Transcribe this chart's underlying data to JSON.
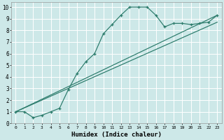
{
  "xlabel": "Humidex (Indice chaleur)",
  "bg_color": "#cde8e8",
  "grid_color": "#ffffff",
  "line_color": "#2a7a6a",
  "line1_x": [
    0,
    1,
    2,
    3,
    4,
    5,
    6,
    7,
    8,
    9,
    10,
    11,
    12,
    13,
    14,
    15,
    16,
    17,
    18,
    19,
    20,
    21,
    22,
    23
  ],
  "line1_y": [
    1.0,
    1.0,
    0.5,
    0.7,
    1.0,
    1.3,
    2.9,
    4.3,
    5.3,
    6.0,
    7.7,
    8.5,
    9.3,
    10.0,
    10.0,
    10.0,
    9.3,
    8.3,
    8.6,
    8.6,
    8.5,
    8.6,
    8.7,
    9.3
  ],
  "line2_x": [
    0,
    23
  ],
  "line2_y": [
    1.0,
    9.3
  ],
  "line3_x": [
    0,
    23
  ],
  "line3_y": [
    1.0,
    8.7
  ],
  "xlim": [
    -0.5,
    23.5
  ],
  "ylim": [
    0,
    10.4
  ],
  "xticks": [
    0,
    1,
    2,
    3,
    4,
    5,
    6,
    7,
    8,
    9,
    10,
    11,
    12,
    13,
    14,
    15,
    16,
    17,
    18,
    19,
    20,
    21,
    22,
    23
  ],
  "yticks": [
    0,
    1,
    2,
    3,
    4,
    5,
    6,
    7,
    8,
    9,
    10
  ],
  "xtick_labels": [
    "0",
    "1",
    "2",
    "3",
    "4",
    "5",
    "6",
    "7",
    "8",
    "9",
    "10",
    "11",
    "12",
    "13",
    "14",
    "15",
    "16",
    "17",
    "18",
    "19",
    "20",
    "21",
    "22",
    "23"
  ],
  "ytick_labels": [
    "0",
    "1",
    "2",
    "3",
    "4",
    "5",
    "6",
    "7",
    "8",
    "9",
    "10"
  ],
  "xlabel_fontsize": 6.5,
  "tick_fontsize": 4.5,
  "ytick_fontsize": 5.5
}
